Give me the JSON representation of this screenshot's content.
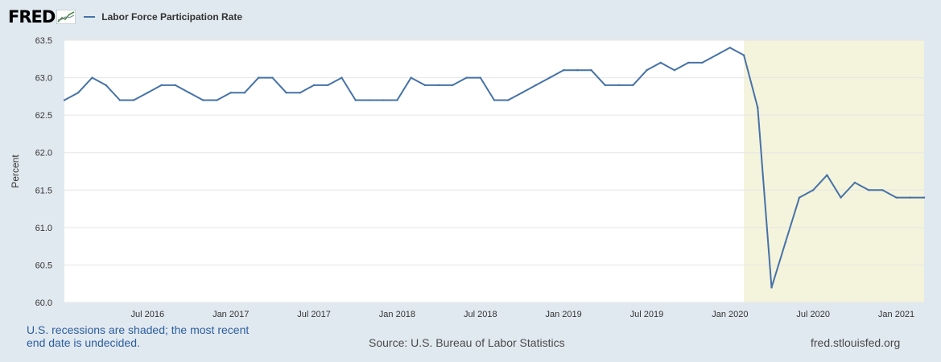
{
  "header": {
    "logo_text": "FRED",
    "legend_label": "Labor Force Participation Rate"
  },
  "footer": {
    "note_line1": "U.S. recessions are shaded; the most recent",
    "note_line2": "end date is undecided.",
    "source": "Source: U.S. Bureau of Labor Statistics",
    "site": "fred.stlouisfed.org"
  },
  "colors": {
    "series": "#4572a7",
    "recession": "#f4f3dc",
    "background": "#e1e9f0"
  },
  "chart_data": {
    "type": "line",
    "title": "",
    "xlabel": "",
    "ylabel": "Percent",
    "ylim": [
      60.0,
      63.5
    ],
    "y_ticks": [
      "60.0",
      "60.5",
      "61.0",
      "61.5",
      "62.0",
      "62.5",
      "63.0",
      "63.5"
    ],
    "x_ticks": [
      "Jul 2016",
      "Jan 2017",
      "Jul 2017",
      "Jan 2018",
      "Jul 2018",
      "Jan 2019",
      "Jul 2019",
      "Jan 2020",
      "Jul 2020",
      "Jan 2021"
    ],
    "x_range": [
      "2016-01",
      "2021-03"
    ],
    "grid": true,
    "recession_shading": {
      "start": "2020-02",
      "end": "2021-03"
    },
    "series": [
      {
        "name": "Labor Force Participation Rate",
        "x": [
          "2016-01",
          "2016-02",
          "2016-03",
          "2016-04",
          "2016-05",
          "2016-06",
          "2016-07",
          "2016-08",
          "2016-09",
          "2016-10",
          "2016-11",
          "2016-12",
          "2017-01",
          "2017-02",
          "2017-03",
          "2017-04",
          "2017-05",
          "2017-06",
          "2017-07",
          "2017-08",
          "2017-09",
          "2017-10",
          "2017-11",
          "2017-12",
          "2018-01",
          "2018-02",
          "2018-03",
          "2018-04",
          "2018-05",
          "2018-06",
          "2018-07",
          "2018-08",
          "2018-09",
          "2018-10",
          "2018-11",
          "2018-12",
          "2019-01",
          "2019-02",
          "2019-03",
          "2019-04",
          "2019-05",
          "2019-06",
          "2019-07",
          "2019-08",
          "2019-09",
          "2019-10",
          "2019-11",
          "2019-12",
          "2020-01",
          "2020-02",
          "2020-03",
          "2020-04",
          "2020-05",
          "2020-06",
          "2020-07",
          "2020-08",
          "2020-09",
          "2020-10",
          "2020-11",
          "2020-12",
          "2021-01",
          "2021-02",
          "2021-03"
        ],
        "values": [
          62.7,
          62.8,
          63.0,
          62.9,
          62.7,
          62.7,
          62.8,
          62.9,
          62.9,
          62.8,
          62.7,
          62.7,
          62.8,
          62.8,
          63.0,
          63.0,
          62.8,
          62.8,
          62.9,
          62.9,
          63.0,
          62.7,
          62.7,
          62.7,
          62.7,
          63.0,
          62.9,
          62.9,
          62.9,
          63.0,
          63.0,
          62.7,
          62.7,
          62.8,
          62.9,
          63.0,
          63.1,
          63.1,
          63.1,
          62.9,
          62.9,
          62.9,
          63.1,
          63.2,
          63.1,
          63.2,
          63.2,
          63.3,
          63.4,
          63.3,
          62.6,
          60.2,
          60.8,
          61.4,
          61.5,
          61.7,
          61.4,
          61.6,
          61.5,
          61.5,
          61.4,
          61.4,
          61.4
        ]
      }
    ]
  }
}
